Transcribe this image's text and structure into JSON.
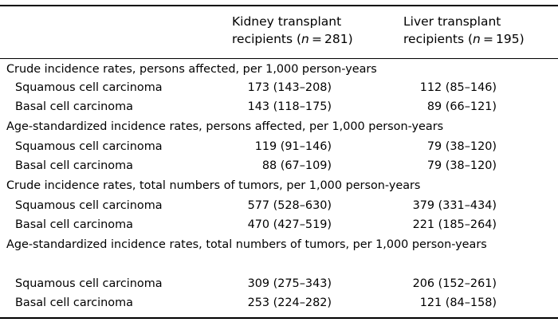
{
  "columns": {
    "kidney": {
      "line1": "Kidney transplant",
      "line2_prefix": "recipients (",
      "n_symbol": "n",
      "line2_suffix": " = 281)"
    },
    "liver": {
      "line1": "Liver transplant",
      "line2_prefix": "recipients (",
      "n_symbol": "n",
      "line2_suffix": " = 195)"
    }
  },
  "sections": [
    {
      "title": "Crude incidence rates, persons affected, per 1,000 person-years",
      "rows": [
        {
          "label": "Squamous cell carcinoma",
          "kidney": "173 (143–208)",
          "liver": "112 (85–146)"
        },
        {
          "label": "Basal cell carcinoma",
          "kidney": "143 (118–175)",
          "liver": "89 (66–121)"
        }
      ]
    },
    {
      "title": "Age-standardized incidence rates, persons affected, per 1,000 person-years",
      "rows": [
        {
          "label": "Squamous cell carcinoma",
          "kidney": "119 (91–146)",
          "liver": "79 (38–120)"
        },
        {
          "label": "Basal cell carcinoma",
          "kidney": "88 (67–109)",
          "liver": "79 (38–120)"
        }
      ]
    },
    {
      "title": "Crude incidence rates, total numbers of tumors, per 1,000 person-years",
      "rows": [
        {
          "label": "Squamous cell carcinoma",
          "kidney": "577 (528–630)",
          "liver": "379 (331–434)"
        },
        {
          "label": "Basal cell carcinoma",
          "kidney": "470 (427–519)",
          "liver": "221 (185–264)"
        }
      ]
    },
    {
      "title": "Age-standardized incidence rates, total numbers of tumors, per 1,000 person-years",
      "rows": [
        {
          "label": "Squamous cell carcinoma",
          "kidney": "309 (275–343)",
          "liver": "206 (152–261)"
        },
        {
          "label": "Basal cell carcinoma",
          "kidney": "253 (224–282)",
          "liver": "121 (84–158)"
        }
      ]
    }
  ]
}
